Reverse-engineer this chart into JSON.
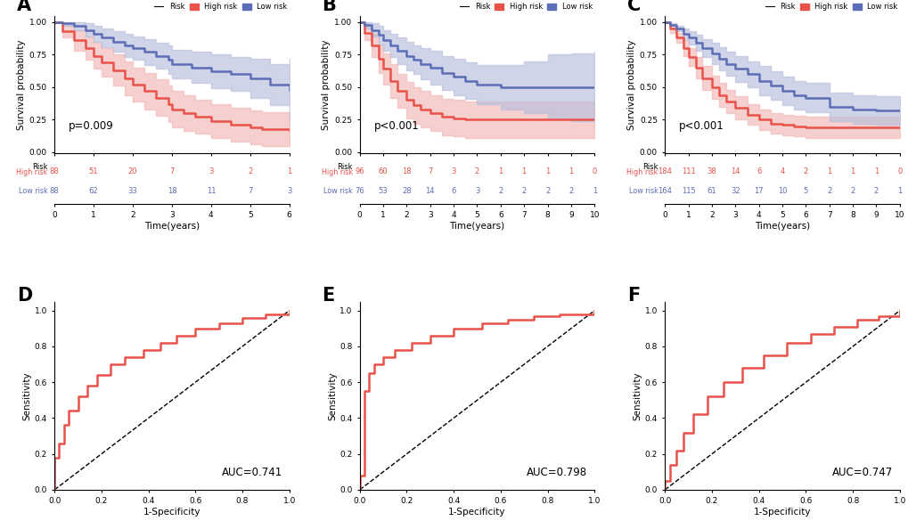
{
  "km_panels": [
    {
      "label": "A",
      "pvalue": "p=0.009",
      "time_max": 6,
      "xticks": [
        0,
        1,
        2,
        3,
        4,
        5,
        6
      ],
      "high_risk": {
        "times": [
          0,
          0.2,
          0.5,
          0.8,
          1.0,
          1.2,
          1.5,
          1.8,
          2.0,
          2.3,
          2.6,
          2.9,
          3.0,
          3.3,
          3.6,
          4.0,
          4.5,
          5.0,
          5.3,
          5.5,
          6.0
        ],
        "surv": [
          1.0,
          0.93,
          0.86,
          0.8,
          0.74,
          0.69,
          0.63,
          0.57,
          0.52,
          0.47,
          0.42,
          0.37,
          0.33,
          0.3,
          0.27,
          0.24,
          0.21,
          0.19,
          0.18,
          0.18,
          0.17
        ],
        "upper": [
          1.0,
          0.98,
          0.94,
          0.89,
          0.84,
          0.8,
          0.75,
          0.7,
          0.65,
          0.61,
          0.56,
          0.51,
          0.47,
          0.44,
          0.4,
          0.37,
          0.34,
          0.32,
          0.31,
          0.31,
          0.3
        ],
        "lower": [
          1.0,
          0.88,
          0.78,
          0.71,
          0.64,
          0.58,
          0.51,
          0.44,
          0.39,
          0.33,
          0.28,
          0.23,
          0.19,
          0.16,
          0.14,
          0.11,
          0.08,
          0.06,
          0.05,
          0.05,
          0.04
        ]
      },
      "low_risk": {
        "times": [
          0,
          0.2,
          0.5,
          0.8,
          1.0,
          1.2,
          1.5,
          1.8,
          2.0,
          2.3,
          2.6,
          2.9,
          3.0,
          3.5,
          4.0,
          4.5,
          5.0,
          5.5,
          6.0
        ],
        "surv": [
          1.0,
          0.99,
          0.97,
          0.94,
          0.91,
          0.88,
          0.85,
          0.82,
          0.8,
          0.77,
          0.74,
          0.71,
          0.68,
          0.65,
          0.62,
          0.6,
          0.57,
          0.52,
          0.48
        ],
        "upper": [
          1.0,
          1.0,
          1.0,
          0.99,
          0.97,
          0.95,
          0.93,
          0.91,
          0.89,
          0.87,
          0.84,
          0.82,
          0.79,
          0.77,
          0.75,
          0.73,
          0.72,
          0.68,
          0.72
        ],
        "lower": [
          1.0,
          0.97,
          0.94,
          0.89,
          0.85,
          0.81,
          0.77,
          0.73,
          0.71,
          0.67,
          0.64,
          0.6,
          0.57,
          0.53,
          0.49,
          0.47,
          0.42,
          0.36,
          0.24
        ]
      },
      "table_high": [
        88,
        51,
        20,
        7,
        3,
        2,
        1
      ],
      "table_low": [
        88,
        62,
        33,
        18,
        11,
        7,
        3
      ]
    },
    {
      "label": "B",
      "pvalue": "p<0.001",
      "time_max": 10,
      "xticks": [
        0,
        1,
        2,
        3,
        4,
        5,
        6,
        7,
        8,
        9,
        10
      ],
      "high_risk": {
        "times": [
          0,
          0.2,
          0.5,
          0.8,
          1.0,
          1.3,
          1.6,
          2.0,
          2.3,
          2.6,
          3.0,
          3.5,
          4.0,
          4.5,
          5.0,
          6.0,
          7.0,
          8.0,
          9.0,
          10.0
        ],
        "surv": [
          1.0,
          0.92,
          0.82,
          0.72,
          0.64,
          0.55,
          0.47,
          0.4,
          0.36,
          0.33,
          0.3,
          0.27,
          0.26,
          0.25,
          0.25,
          0.25,
          0.25,
          0.25,
          0.25,
          0.25
        ],
        "upper": [
          1.0,
          0.98,
          0.91,
          0.83,
          0.76,
          0.68,
          0.6,
          0.54,
          0.5,
          0.47,
          0.44,
          0.41,
          0.4,
          0.39,
          0.39,
          0.39,
          0.39,
          0.39,
          0.39,
          0.39
        ],
        "lower": [
          1.0,
          0.86,
          0.73,
          0.61,
          0.52,
          0.42,
          0.34,
          0.26,
          0.22,
          0.19,
          0.16,
          0.13,
          0.12,
          0.11,
          0.11,
          0.11,
          0.11,
          0.11,
          0.11,
          0.11
        ]
      },
      "low_risk": {
        "times": [
          0,
          0.2,
          0.5,
          0.8,
          1.0,
          1.3,
          1.6,
          2.0,
          2.3,
          2.6,
          3.0,
          3.5,
          4.0,
          4.5,
          5.0,
          6.0,
          7.0,
          8.0,
          9.0,
          10.0
        ],
        "surv": [
          1.0,
          0.98,
          0.94,
          0.9,
          0.86,
          0.82,
          0.78,
          0.74,
          0.71,
          0.68,
          0.65,
          0.61,
          0.58,
          0.55,
          0.52,
          0.5,
          0.5,
          0.5,
          0.5,
          0.5
        ],
        "upper": [
          1.0,
          1.0,
          0.99,
          0.97,
          0.94,
          0.91,
          0.88,
          0.85,
          0.82,
          0.8,
          0.78,
          0.74,
          0.72,
          0.69,
          0.67,
          0.67,
          0.7,
          0.75,
          0.76,
          0.77
        ],
        "lower": [
          1.0,
          0.95,
          0.89,
          0.83,
          0.78,
          0.73,
          0.68,
          0.63,
          0.6,
          0.56,
          0.52,
          0.48,
          0.44,
          0.41,
          0.37,
          0.33,
          0.3,
          0.25,
          0.24,
          0.23
        ]
      },
      "table_high": [
        96,
        60,
        18,
        7,
        3,
        2,
        1,
        1,
        1,
        1,
        0
      ],
      "table_low": [
        76,
        53,
        28,
        14,
        6,
        3,
        2,
        2,
        2,
        2,
        1
      ]
    },
    {
      "label": "C",
      "pvalue": "p<0.001",
      "time_max": 10,
      "xticks": [
        0,
        1,
        2,
        3,
        4,
        5,
        6,
        7,
        8,
        9,
        10
      ],
      "high_risk": {
        "times": [
          0,
          0.2,
          0.5,
          0.8,
          1.0,
          1.3,
          1.6,
          2.0,
          2.3,
          2.6,
          3.0,
          3.5,
          4.0,
          4.5,
          5.0,
          5.5,
          6.0,
          7.0,
          8.0,
          9.0,
          10.0
        ],
        "surv": [
          1.0,
          0.95,
          0.88,
          0.8,
          0.73,
          0.65,
          0.57,
          0.5,
          0.44,
          0.39,
          0.34,
          0.29,
          0.25,
          0.22,
          0.21,
          0.2,
          0.19,
          0.19,
          0.19,
          0.19,
          0.19
        ],
        "upper": [
          1.0,
          0.98,
          0.92,
          0.86,
          0.8,
          0.73,
          0.66,
          0.59,
          0.53,
          0.48,
          0.43,
          0.37,
          0.33,
          0.3,
          0.29,
          0.28,
          0.27,
          0.27,
          0.27,
          0.27,
          0.27
        ],
        "lower": [
          1.0,
          0.92,
          0.84,
          0.74,
          0.66,
          0.57,
          0.48,
          0.41,
          0.35,
          0.3,
          0.25,
          0.21,
          0.17,
          0.14,
          0.13,
          0.12,
          0.11,
          0.11,
          0.11,
          0.11,
          0.11
        ]
      },
      "low_risk": {
        "times": [
          0,
          0.2,
          0.5,
          0.8,
          1.0,
          1.3,
          1.6,
          2.0,
          2.3,
          2.6,
          3.0,
          3.5,
          4.0,
          4.5,
          5.0,
          5.5,
          6.0,
          7.0,
          8.0,
          9.0,
          10.0
        ],
        "surv": [
          1.0,
          0.98,
          0.95,
          0.91,
          0.88,
          0.84,
          0.8,
          0.76,
          0.72,
          0.68,
          0.64,
          0.6,
          0.55,
          0.51,
          0.47,
          0.44,
          0.42,
          0.35,
          0.33,
          0.32,
          0.32
        ],
        "upper": [
          1.0,
          0.99,
          0.97,
          0.95,
          0.93,
          0.9,
          0.87,
          0.84,
          0.81,
          0.77,
          0.74,
          0.7,
          0.66,
          0.62,
          0.58,
          0.55,
          0.53,
          0.46,
          0.44,
          0.43,
          0.43
        ],
        "lower": [
          1.0,
          0.97,
          0.93,
          0.87,
          0.83,
          0.78,
          0.73,
          0.68,
          0.63,
          0.59,
          0.54,
          0.5,
          0.44,
          0.4,
          0.36,
          0.33,
          0.31,
          0.24,
          0.22,
          0.21,
          0.21
        ]
      },
      "table_high": [
        184,
        111,
        38,
        14,
        6,
        4,
        2,
        1,
        1,
        1,
        0
      ],
      "table_low": [
        164,
        115,
        61,
        32,
        17,
        10,
        5,
        2,
        2,
        2,
        1
      ]
    }
  ],
  "roc_panels": [
    {
      "label": "D",
      "auc": "AUC=0.741",
      "fpr": [
        0.0,
        0.0,
        0.02,
        0.04,
        0.06,
        0.1,
        0.14,
        0.18,
        0.24,
        0.3,
        0.38,
        0.45,
        0.52,
        0.6,
        0.7,
        0.8,
        0.9,
        1.0
      ],
      "tpr": [
        0.0,
        0.18,
        0.26,
        0.36,
        0.44,
        0.52,
        0.58,
        0.64,
        0.7,
        0.74,
        0.78,
        0.82,
        0.86,
        0.9,
        0.93,
        0.96,
        0.98,
        1.0
      ]
    },
    {
      "label": "E",
      "auc": "AUC=0.798",
      "fpr": [
        0.0,
        0.0,
        0.02,
        0.04,
        0.06,
        0.1,
        0.15,
        0.22,
        0.3,
        0.4,
        0.52,
        0.63,
        0.74,
        0.85,
        1.0
      ],
      "tpr": [
        0.0,
        0.08,
        0.55,
        0.65,
        0.7,
        0.74,
        0.78,
        0.82,
        0.86,
        0.9,
        0.93,
        0.95,
        0.97,
        0.98,
        1.0
      ]
    },
    {
      "label": "F",
      "auc": "AUC=0.747",
      "fpr": [
        0.0,
        0.0,
        0.02,
        0.05,
        0.08,
        0.12,
        0.18,
        0.25,
        0.33,
        0.42,
        0.52,
        0.62,
        0.72,
        0.82,
        0.91,
        1.0
      ],
      "tpr": [
        0.0,
        0.05,
        0.14,
        0.22,
        0.32,
        0.42,
        0.52,
        0.6,
        0.68,
        0.75,
        0.82,
        0.87,
        0.91,
        0.95,
        0.97,
        1.0
      ]
    }
  ],
  "high_risk_color": "#E8524A",
  "low_risk_color": "#5B6DB5",
  "high_risk_fill": "#F2B8B5",
  "low_risk_fill": "#B8BEDD",
  "roc_color": "#E8524A",
  "bg_color": "#FFFFFF"
}
